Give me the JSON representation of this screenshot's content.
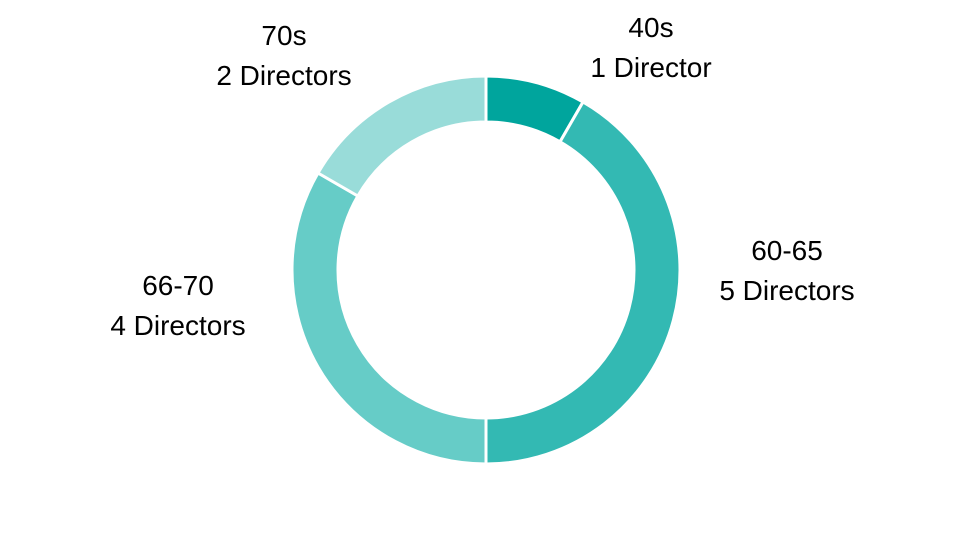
{
  "chart_data": {
    "type": "pie",
    "title": "",
    "slices": [
      {
        "category": "40s",
        "value": 1,
        "value_label": "1 Director",
        "color": "#00a59d"
      },
      {
        "category": "60-65",
        "value": 5,
        "value_label": "5 Directors",
        "color": "#33b9b3"
      },
      {
        "category": "66-70",
        "value": 4,
        "value_label": "4 Directors",
        "color": "#66ccc7"
      },
      {
        "category": "70s",
        "value": 2,
        "value_label": "2 Directors",
        "color": "#99dcd9"
      }
    ],
    "style": "donut",
    "slice_border_color": "#ffffff",
    "start_direction": "top-clockwise",
    "legend": "none",
    "grid": false
  }
}
